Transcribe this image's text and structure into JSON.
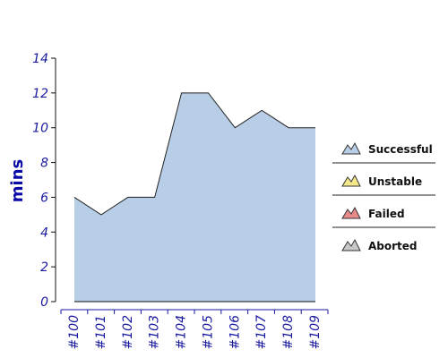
{
  "chart_data": {
    "type": "area",
    "ylabel": "mins",
    "xlabel": "",
    "categories": [
      "#100",
      "#101",
      "#102",
      "#103",
      "#104",
      "#105",
      "#106",
      "#107",
      "#108",
      "#109"
    ],
    "series": [
      {
        "name": "Successful",
        "values": [
          6,
          5,
          6,
          6,
          12,
          12,
          10,
          11,
          10,
          10
        ]
      }
    ],
    "ylim": [
      0,
      14
    ],
    "yticks": [
      0,
      2,
      4,
      6,
      8,
      10,
      12,
      14
    ],
    "grid": false,
    "legend_position": "right",
    "legend": [
      {
        "name": "Successful",
        "color": "#b8cde6"
      },
      {
        "name": "Unstable",
        "color": "#f5e88a"
      },
      {
        "name": "Failed",
        "color": "#e88a8a"
      },
      {
        "name": "Aborted",
        "color": "#c8c8c8"
      }
    ]
  }
}
